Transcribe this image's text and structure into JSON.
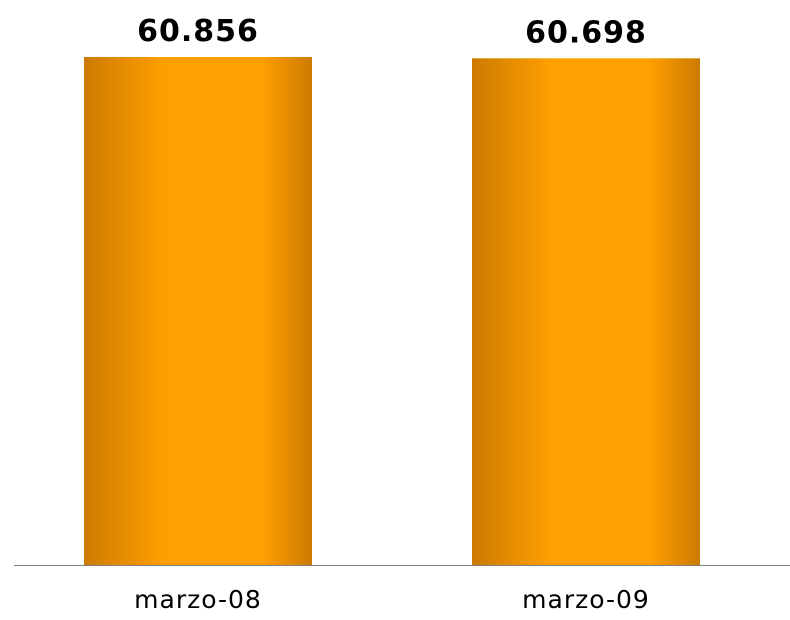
{
  "chart_data": {
    "type": "bar",
    "categories": [
      "marzo-08",
      "marzo-09"
    ],
    "series": [
      {
        "values": [
          60.856,
          60.698
        ],
        "data_labels": [
          "60.856",
          "60.698"
        ]
      }
    ],
    "title": "",
    "xlabel": "",
    "ylabel": "",
    "ylim": [
      0,
      60.856
    ],
    "grid": false,
    "legend": "none",
    "colors": {
      "bar_edge": "#cc7a00",
      "bar_center": "#ff9f00",
      "axis": "#808080"
    }
  }
}
